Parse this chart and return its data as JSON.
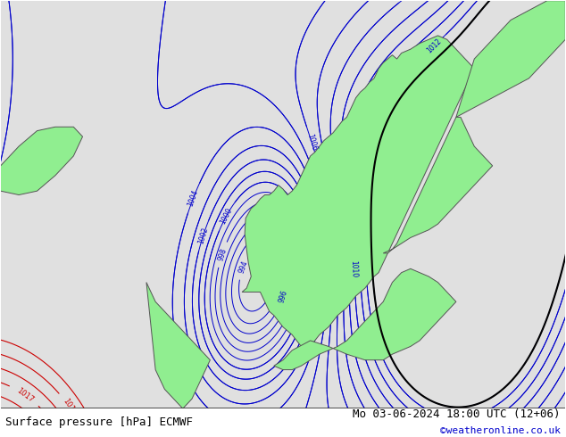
{
  "title_left": "Surface pressure [hPa] ECMWF",
  "title_right": "Mo 03-06-2024 18:00 UTC (12+06)",
  "copyright": "©weatheronline.co.uk",
  "ocean_color": "#e0e0e0",
  "land_color": "#90EE90",
  "land_color_gray": "#c8c8c8",
  "isobar_color_blue": "#0000cc",
  "isobar_color_red": "#cc0000",
  "isobar_color_black": "#000000",
  "footer_fontsize": 9,
  "label_fontsize": 6.5,
  "lon_min": -22,
  "lon_max": 40,
  "lat_min": 52,
  "lat_max": 73
}
